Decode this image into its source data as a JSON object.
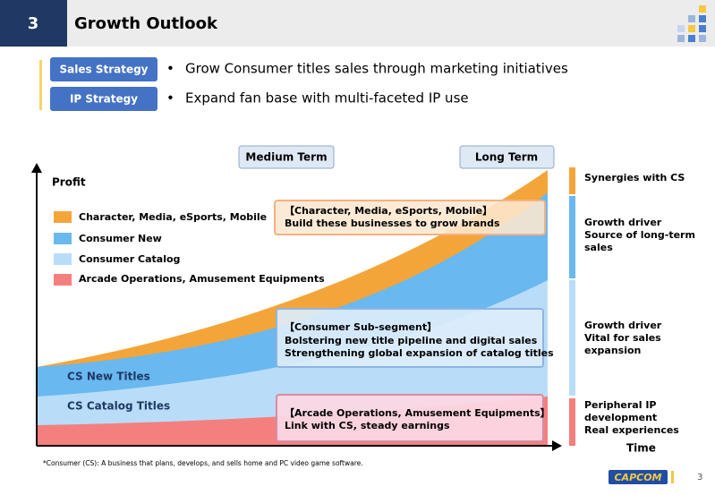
{
  "header": {
    "section_number": "3",
    "title": "Growth Outlook"
  },
  "strategies": [
    {
      "label": "Sales Strategy",
      "text": "Grow Consumer titles sales through marketing initiatives"
    },
    {
      "label": "IP Strategy",
      "text": "Expand fan base with multi-faceted IP use"
    }
  ],
  "chart": {
    "y_label": "Profit",
    "x_label": "Time",
    "periods": [
      "Medium Term",
      "Long Term"
    ],
    "legend": [
      "Character, Media, eSports, Mobile",
      "Consumer New",
      "Consumer Catalog",
      "Arcade Operations, Amusement Equipments"
    ],
    "area_labels": [
      "CS New Titles",
      "CS Catalog Titles"
    ],
    "callouts": [
      {
        "title": "【Character, Media, eSports, Mobile】",
        "lines": [
          "Build these businesses to grow brands"
        ]
      },
      {
        "title": "【Consumer Sub-segment】",
        "lines": [
          "Bolstering new title pipeline and digital sales",
          "Strengthening global expansion of catalog titles"
        ]
      },
      {
        "title": "【Arcade Operations, Amusement Equipments】",
        "lines": [
          "Link with CS, steady earnings"
        ]
      }
    ],
    "drivers": [
      [
        "Synergies with CS"
      ],
      [
        "Growth driver",
        "Source of long-term",
        "sales"
      ],
      [
        "Growth driver",
        "Vital for sales",
        "expansion"
      ],
      [
        "Peripheral IP",
        "development",
        "Real experiences"
      ]
    ]
  },
  "footnote": "*Consumer (CS): A business that plans, develops, and sells home and PC video game software.",
  "logo": "CAPCOM",
  "page_number": "3"
}
